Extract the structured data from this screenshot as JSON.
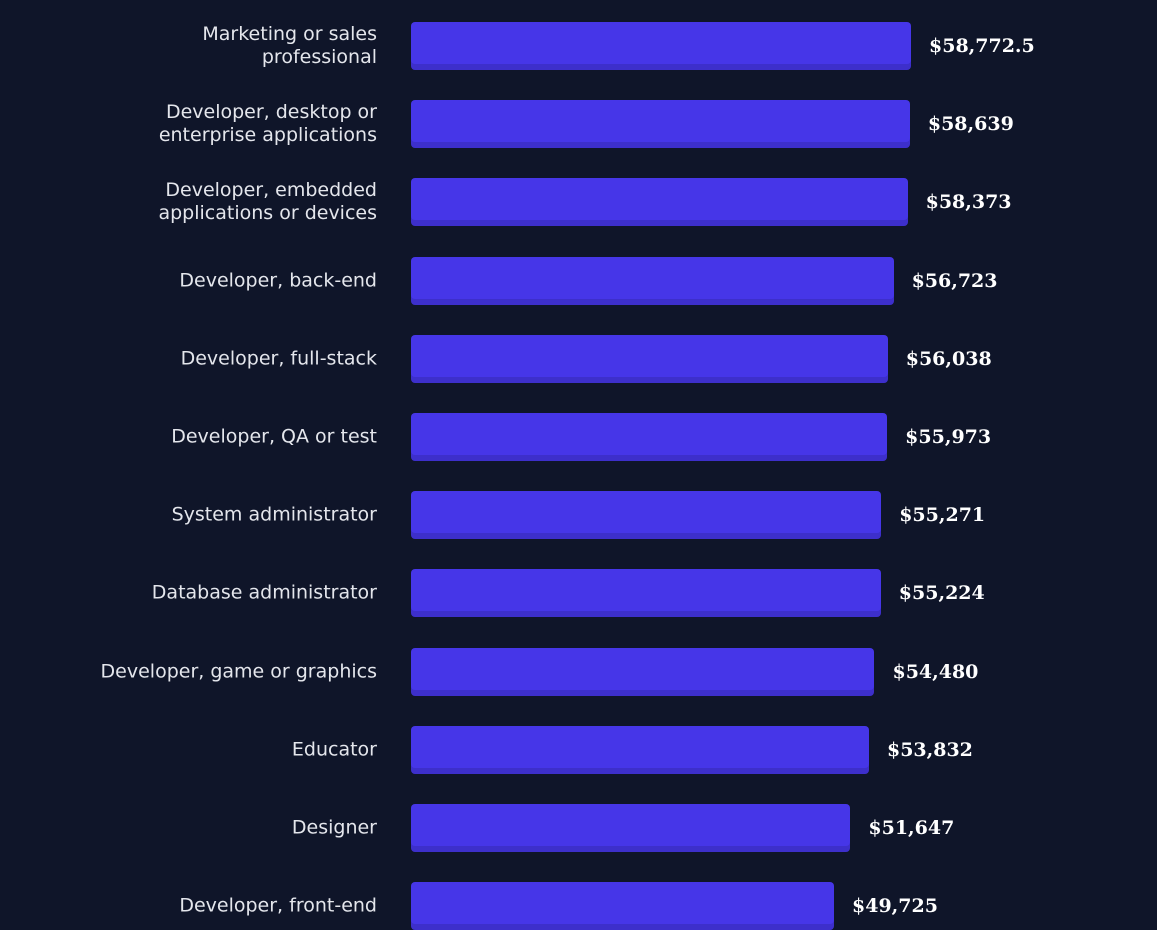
{
  "chart_data": {
    "type": "bar",
    "orientation": "horizontal",
    "color": "#4636e8",
    "categories": [
      "Marketing or sales\nprofessional",
      "Developer, desktop or\nenterprise applications",
      "Developer, embedded\napplications or devices",
      "Developer, back-end",
      "Developer, full-stack",
      "Developer, QA or test",
      "System administrator",
      "Database administrator",
      "Developer, game or graphics",
      "Educator",
      "Designer",
      "Developer, front-end"
    ],
    "values": [
      58772.5,
      58639,
      58373,
      56723,
      56038,
      55973,
      55271,
      55224,
      54480,
      53832,
      51647,
      49725
    ],
    "value_labels": [
      "$58,772.5",
      "$58,639",
      "$58,373",
      "$56,723",
      "$56,038",
      "$55,973",
      "$55,271",
      "$55,224",
      "$54,480",
      "$53,832",
      "$51,647",
      "$49,725"
    ]
  }
}
